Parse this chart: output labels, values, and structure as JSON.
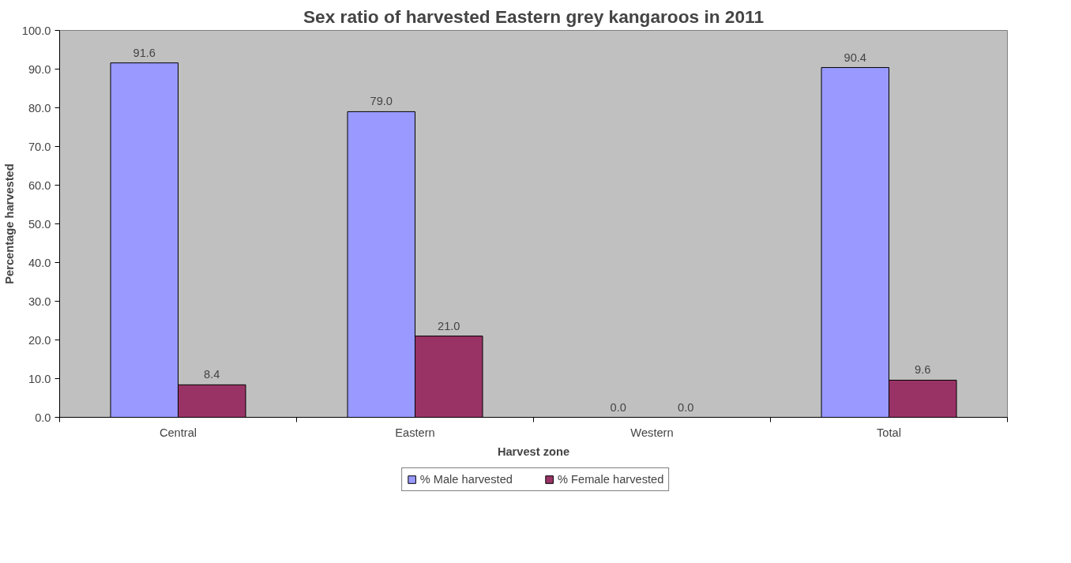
{
  "chart_data": {
    "type": "bar",
    "title": "Sex ratio of harvested Eastern grey kangaroos in 2011",
    "xlabel": "Harvest zone",
    "ylabel": "Percentage harvested",
    "categories": [
      "Central",
      "Eastern",
      "Western",
      "Total"
    ],
    "series": [
      {
        "name": "% Male harvested",
        "color": "#9999ff",
        "values": [
          91.6,
          79.0,
          0.0,
          90.4
        ],
        "value_labels": [
          "91.6",
          "79.0",
          "0.0",
          "90.4"
        ]
      },
      {
        "name": "% Female harvested",
        "color": "#993366",
        "values": [
          8.4,
          21.0,
          0.0,
          9.6
        ],
        "value_labels": [
          "8.4",
          "21.0",
          "0.0",
          "9.6"
        ]
      }
    ],
    "ylim": [
      0,
      100
    ],
    "yticks": [
      {
        "value": 0,
        "label": "0.0"
      },
      {
        "value": 10,
        "label": "10.0"
      },
      {
        "value": 20,
        "label": "20.0"
      },
      {
        "value": 30,
        "label": "30.0"
      },
      {
        "value": 40,
        "label": "40.0"
      },
      {
        "value": 50,
        "label": "50.0"
      },
      {
        "value": 60,
        "label": "60.0"
      },
      {
        "value": 70,
        "label": "70.0"
      },
      {
        "value": 80,
        "label": "80.0"
      },
      {
        "value": 90,
        "label": "90.0"
      },
      {
        "value": 100,
        "label": "100.0"
      }
    ],
    "grid": false,
    "legend": "bottom"
  }
}
